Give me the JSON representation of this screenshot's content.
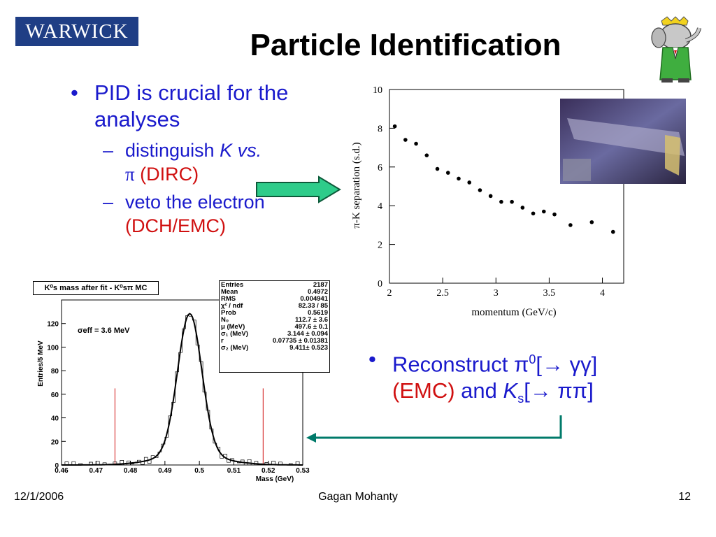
{
  "logo_text": "WARWICK",
  "title": "Particle Identification",
  "bullet1": {
    "text": "PID is crucial for the analyses",
    "sub1_a": "distinguish ",
    "sub1_k": "K vs.",
    "sub1_pi": "π",
    "sub1_red": "(DIRC)",
    "sub2": "veto the electron",
    "sub2_red": "(DCH/EMC)"
  },
  "bullet2": {
    "part1": "Reconstruct  π",
    "sup": "0",
    "part2": "[→ γγ]",
    "red": "(EMC)",
    "and": " and ",
    "k": "K",
    "ksub": "s",
    "part3": "[→ ππ]"
  },
  "footer": {
    "date": "12/1/2006",
    "author": "Gagan Mohanty",
    "page": "12"
  },
  "colors": {
    "accent": "#1a1acc",
    "red": "#d01010",
    "arrow_green": "#2ecc8a",
    "arrow_teal": "#007a6a",
    "logo_bg": "#1f3e85"
  },
  "chart_data": [
    {
      "type": "scatter",
      "xlabel": "momentum (GeV/c)",
      "ylabel": "π-K separation (s.d.)",
      "xlim": [
        2,
        4.2
      ],
      "ylim": [
        0,
        10
      ],
      "xticks": [
        "2",
        "2.5",
        "3",
        "3.5",
        "4"
      ],
      "yticks": [
        "0",
        "2",
        "4",
        "6",
        "8",
        "10"
      ],
      "x": [
        2.05,
        2.15,
        2.25,
        2.35,
        2.45,
        2.55,
        2.65,
        2.75,
        2.85,
        2.95,
        3.05,
        3.15,
        3.25,
        3.35,
        3.45,
        3.55,
        3.7,
        3.9,
        4.1
      ],
      "y": [
        8.1,
        7.4,
        7.2,
        6.6,
        5.9,
        5.7,
        5.4,
        5.2,
        4.8,
        4.5,
        4.2,
        4.2,
        3.9,
        3.6,
        3.7,
        3.55,
        3.0,
        3.15,
        2.65
      ]
    },
    {
      "type": "histogram",
      "title": "K⁰s mass after fit - K⁰sπ MC",
      "xlabel": "Mass (GeV)",
      "ylabel": "Entries/5 MeV",
      "annotation": "σeff = 3.6 MeV",
      "xlim": [
        0.46,
        0.53
      ],
      "ylim": [
        0,
        140
      ],
      "xticks": [
        "0.46",
        "0.47",
        "0.48",
        "0.49",
        "0.5",
        "0.51",
        "0.52",
        "0.53"
      ],
      "yticks": [
        "0",
        "20",
        "40",
        "60",
        "80",
        "100",
        "120"
      ],
      "mean": 0.4972,
      "sigma": 0.0035,
      "peak": 120,
      "cut_lines": [
        0.4755,
        0.5185
      ],
      "stats": [
        [
          "Entries",
          "2187"
        ],
        [
          "Mean",
          "0.4972"
        ],
        [
          "RMS",
          "0.004941"
        ],
        [
          "χ² / ndf",
          "82.33 / 85"
        ],
        [
          "Prob",
          "0.5619"
        ],
        [
          "N₀",
          "112.7 ± 3.6"
        ],
        [
          "μ (MeV)",
          "497.6 ± 0.1"
        ],
        [
          "σ₁ (MeV)",
          "3.144 ± 0.094"
        ],
        [
          "r",
          "0.07735 ± 0.01381"
        ],
        [
          "σ₂ (MeV)",
          "9.411± 0.523"
        ]
      ]
    }
  ]
}
